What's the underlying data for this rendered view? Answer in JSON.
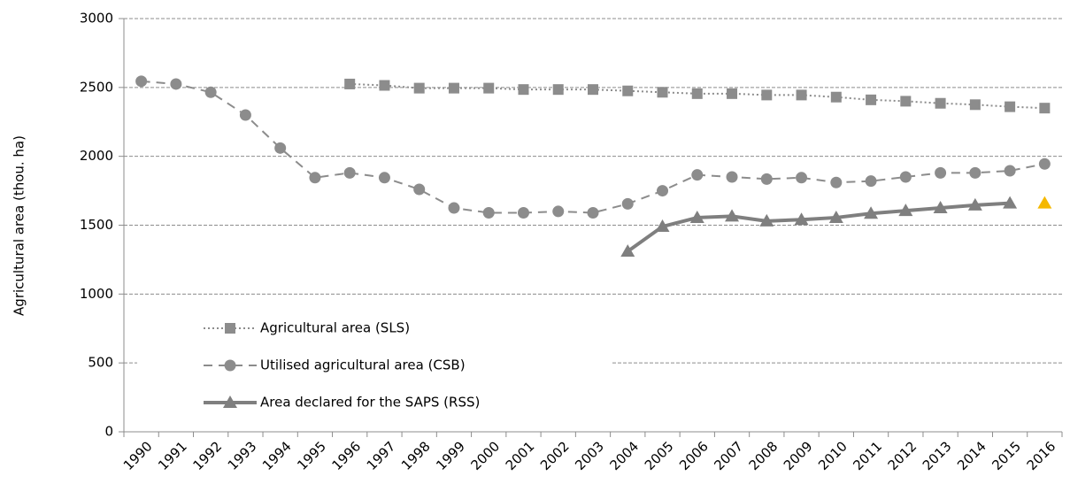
{
  "chart_data": {
    "type": "line",
    "y_label": "Agricultural area (thou. ha)",
    "categories": [
      "1990",
      "1991",
      "1992",
      "1993",
      "1994",
      "1995",
      "1996",
      "1997",
      "1998",
      "1999",
      "2000",
      "2001",
      "2002",
      "2003",
      "2004",
      "2005",
      "2006",
      "2007",
      "2008",
      "2009",
      "2010",
      "2011",
      "2012",
      "2013",
      "2014",
      "2015",
      "2016"
    ],
    "series": [
      {
        "name": "Agricultural area (SLS)",
        "color": "#8c8c8c",
        "line": "dotted",
        "marker": "square",
        "values": [
          null,
          null,
          null,
          null,
          null,
          null,
          2525,
          2515,
          2495,
          2495,
          2495,
          2485,
          2485,
          2485,
          2475,
          2465,
          2455,
          2455,
          2445,
          2445,
          2430,
          2410,
          2400,
          2385,
          2375,
          2360,
          2350
        ]
      },
      {
        "name": "Utilised agricultural area (CSB)",
        "color": "#8c8c8c",
        "line": "dashed",
        "marker": "circle",
        "values": [
          2545,
          2525,
          2465,
          2300,
          2060,
          1845,
          1880,
          1845,
          1760,
          1625,
          1590,
          1590,
          1600,
          1590,
          1655,
          1750,
          1865,
          1850,
          1835,
          1845,
          1810,
          1820,
          1850,
          1880,
          1880,
          1895,
          1945
        ]
      },
      {
        "name": "Area declared for the SAPS (RSS)",
        "color": "#7f7f7f",
        "line": "solid",
        "marker": "triangle",
        "values": [
          null,
          null,
          null,
          null,
          null,
          null,
          null,
          null,
          null,
          null,
          null,
          null,
          null,
          null,
          1310,
          1490,
          1555,
          1565,
          1530,
          1540,
          1555,
          1585,
          1605,
          1625,
          1645,
          1660,
          null
        ]
      },
      {
        "color": "#f5b800",
        "line": "none",
        "marker": "triangle",
        "values": [
          null,
          null,
          null,
          null,
          null,
          null,
          null,
          null,
          null,
          null,
          null,
          null,
          null,
          null,
          null,
          null,
          null,
          null,
          null,
          null,
          null,
          null,
          null,
          null,
          null,
          null,
          1660
        ]
      }
    ],
    "ylim": [
      0,
      3000
    ],
    "yticks": [
      0,
      500,
      1000,
      1500,
      2000,
      2500,
      3000
    ],
    "grid": true,
    "legend": "left"
  }
}
